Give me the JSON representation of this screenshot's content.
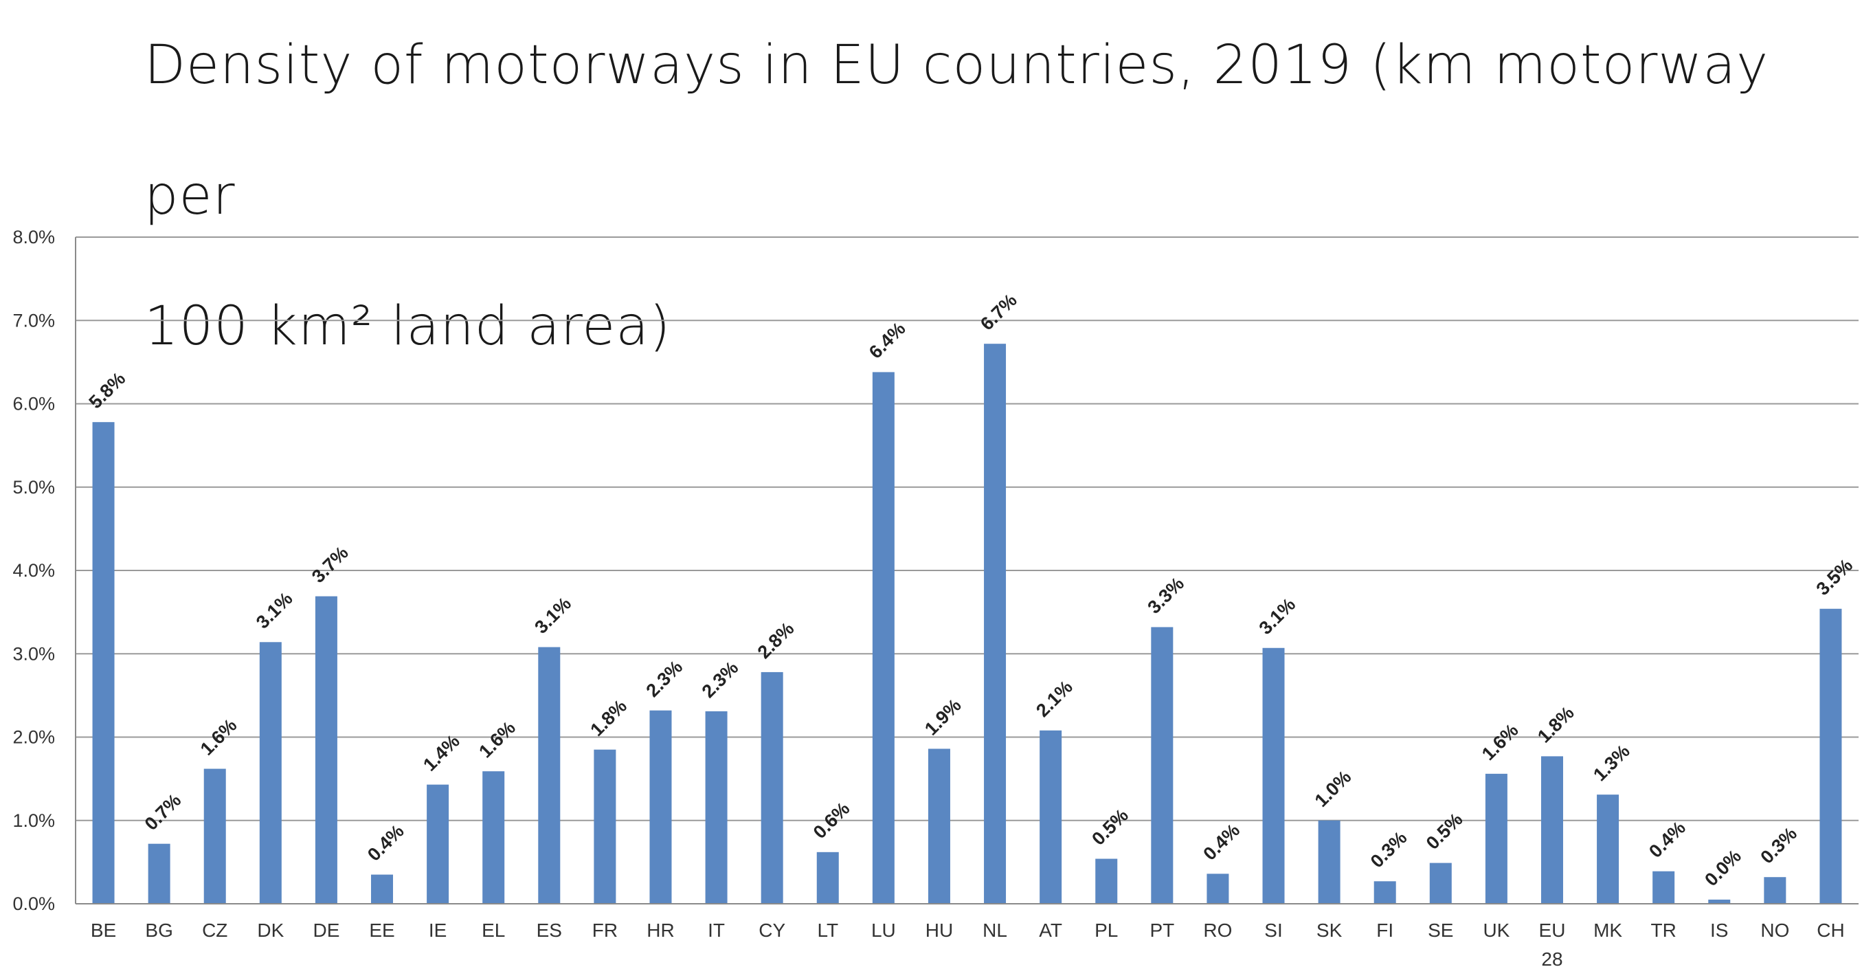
{
  "chart_data": {
    "type": "bar",
    "title_line1": "Density of motorways in EU countries, 2019 (km motorway per",
    "title_line2": "100 km² land area)",
    "xlabel": "",
    "ylabel": "",
    "ylim": [
      0,
      8
    ],
    "yticks": [
      "0.0%",
      "1.0%",
      "2.0%",
      "3.0%",
      "4.0%",
      "5.0%",
      "6.0%",
      "7.0%",
      "8.0%"
    ],
    "grid": true,
    "legend": "none",
    "bar_color": "#5a87c2",
    "categories": [
      "BE",
      "BG",
      "CZ",
      "DK",
      "DE",
      "EE",
      "IE",
      "EL",
      "ES",
      "FR",
      "HR",
      "IT",
      "CY",
      "LT",
      "LU",
      "HU",
      "NL",
      "AT",
      "PL",
      "PT",
      "RO",
      "SI",
      "SK",
      "FI",
      "SE",
      "UK",
      "EU 28",
      "MK",
      "TR",
      "IS",
      "NO",
      "CH"
    ],
    "values": [
      5.78,
      0.72,
      1.62,
      3.14,
      3.69,
      0.35,
      1.43,
      1.59,
      3.08,
      1.85,
      2.32,
      2.31,
      2.78,
      0.62,
      6.38,
      1.86,
      6.72,
      2.08,
      0.54,
      3.32,
      0.36,
      3.07,
      1.0,
      0.27,
      0.49,
      1.56,
      1.77,
      1.31,
      0.39,
      0.05,
      0.32,
      3.54
    ],
    "data_labels": [
      "5.8%",
      "0.7%",
      "1.6%",
      "3.1%",
      "3.7%",
      "0.4%",
      "1.4%",
      "1.6%",
      "3.1%",
      "1.8%",
      "2.3%",
      "2.3%",
      "2.8%",
      "0.6%",
      "6.4%",
      "1.9%",
      "6.7%",
      "2.1%",
      "0.5%",
      "3.3%",
      "0.4%",
      "3.1%",
      "1.0%",
      "0.3%",
      "0.5%",
      "1.6%",
      "1.8%",
      "1.3%",
      "0.4%",
      "0.0%",
      "0.3%",
      "3.5%"
    ]
  }
}
